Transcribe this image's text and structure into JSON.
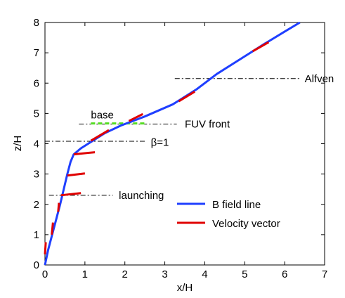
{
  "chart_data": {
    "type": "line",
    "xlabel": "x/H",
    "ylabel": "z/H",
    "xlim": [
      0,
      7
    ],
    "ylim": [
      0,
      8
    ],
    "xticks": [
      0,
      1,
      2,
      3,
      4,
      5,
      6,
      7
    ],
    "yticks": [
      0,
      1,
      2,
      3,
      4,
      5,
      6,
      7,
      8
    ],
    "grid": false,
    "legend_position": "bottom-right",
    "legend": [
      {
        "label": "B field line",
        "color": "#1f3fff",
        "style": "solid"
      },
      {
        "label": "Velocity vector",
        "color": "#e00000",
        "style": "solid"
      }
    ],
    "field_line": {
      "name": "B field line",
      "color": "#1f3fff",
      "points": [
        [
          0,
          0
        ],
        [
          0.08,
          0.5
        ],
        [
          0.18,
          1.0
        ],
        [
          0.28,
          1.5
        ],
        [
          0.38,
          2.0
        ],
        [
          0.47,
          2.5
        ],
        [
          0.56,
          3.0
        ],
        [
          0.64,
          3.4
        ],
        [
          0.72,
          3.65
        ],
        [
          0.9,
          3.85
        ],
        [
          1.2,
          4.1
        ],
        [
          1.5,
          4.35
        ],
        [
          1.9,
          4.6
        ],
        [
          2.5,
          4.9
        ],
        [
          3.2,
          5.3
        ],
        [
          3.8,
          5.8
        ],
        [
          4.3,
          6.3
        ],
        [
          4.9,
          6.8
        ],
        [
          5.5,
          7.3
        ],
        [
          6.0,
          7.7
        ],
        [
          6.38,
          8.0
        ]
      ]
    },
    "velocity_vectors": {
      "name": "Velocity vector",
      "color": "#e00000",
      "segments": [
        {
          "x0": 0.0,
          "z0": 0.35,
          "x1": 0.02,
          "z1": 0.75
        },
        {
          "x0": 0.17,
          "z0": 1.0,
          "x1": 0.2,
          "z1": 1.4
        },
        {
          "x0": 0.33,
          "z0": 1.75,
          "x1": 0.35,
          "z1": 2.05
        },
        {
          "x0": 0.4,
          "z0": 2.3,
          "x1": 0.9,
          "z1": 2.37
        },
        {
          "x0": 0.56,
          "z0": 2.95,
          "x1": 1.0,
          "z1": 3.02
        },
        {
          "x0": 0.72,
          "z0": 3.65,
          "x1": 1.25,
          "z1": 3.72
        },
        {
          "x0": 1.15,
          "z0": 4.1,
          "x1": 1.6,
          "z1": 4.45
        },
        {
          "x0": 2.1,
          "z0": 4.75,
          "x1": 2.45,
          "z1": 4.98
        },
        {
          "x0": 3.35,
          "z0": 5.4,
          "x1": 3.75,
          "z1": 5.72
        },
        {
          "x0": 5.2,
          "z0": 7.05,
          "x1": 5.6,
          "z1": 7.35
        }
      ]
    },
    "green_marker": {
      "color": "#55dd22",
      "x0": 1.15,
      "x1": 2.5,
      "z": 4.67
    },
    "annotations": [
      {
        "label": "base",
        "x_text": 1.15,
        "z_text": 4.95,
        "has_line": false
      },
      {
        "label": "FUV front",
        "x_text": 3.5,
        "z_text": 4.65,
        "has_line": true,
        "line_x0": 0.85,
        "line_x1": 3.3,
        "line_z": 4.65
      },
      {
        "label": "β=1",
        "x_text": 2.65,
        "z_text": 4.05,
        "has_line": true,
        "line_x0": 0.0,
        "line_x1": 2.5,
        "line_z": 4.08
      },
      {
        "label": "launching",
        "x_text": 1.85,
        "z_text": 2.3,
        "has_line": true,
        "line_x0": 0.1,
        "line_x1": 1.7,
        "line_z": 2.3
      },
      {
        "label": "Alfven",
        "x_text": 6.5,
        "z_text": 6.15,
        "has_line": true,
        "line_x0": 3.25,
        "line_x1": 6.4,
        "line_z": 6.15
      }
    ]
  }
}
